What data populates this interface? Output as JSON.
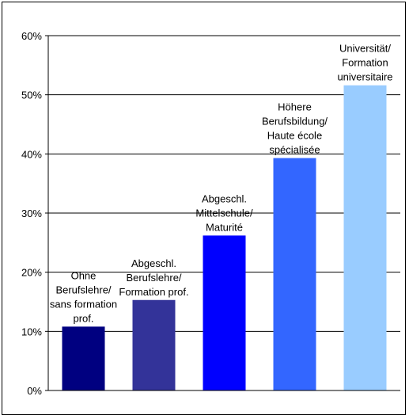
{
  "chart_data": {
    "type": "bar",
    "title": "",
    "xlabel": "",
    "ylabel": "",
    "ylim": [
      0,
      60
    ],
    "y_ticks": [
      0,
      10,
      20,
      30,
      40,
      50,
      60
    ],
    "y_tick_labels": [
      "0%",
      "10%",
      "20%",
      "30%",
      "40%",
      "50%",
      "60%"
    ],
    "grid": true,
    "legend": "none",
    "categories": [
      "Ohne Berufslehre/ sans formation prof.",
      "Abgeschl. Berufslehre/ Formation prof.",
      "Abgeschl. Mittelschule/ Maturité",
      "Höhere Berufsbildung/ Haute école spécialisée",
      "Universität/ Formation universitaire"
    ],
    "category_label_lines": [
      [
        "Ohne",
        "Berufslehre/",
        "sans formation",
        "prof."
      ],
      [
        "Abgeschl.",
        "Berufslehre/",
        "Formation prof."
      ],
      [
        "Abgeschl.",
        "Mittelschule/",
        "Maturité"
      ],
      [
        "Höhere",
        "Berufsbildung/",
        "Haute école",
        "spécialisée"
      ],
      [
        "Universität/",
        "Formation",
        "universitaire"
      ]
    ],
    "values": [
      10.8,
      15.3,
      26.2,
      39.3,
      51.6
    ],
    "colors": [
      "#000080",
      "#333399",
      "#0000ff",
      "#3366ff",
      "#99ccff"
    ]
  }
}
